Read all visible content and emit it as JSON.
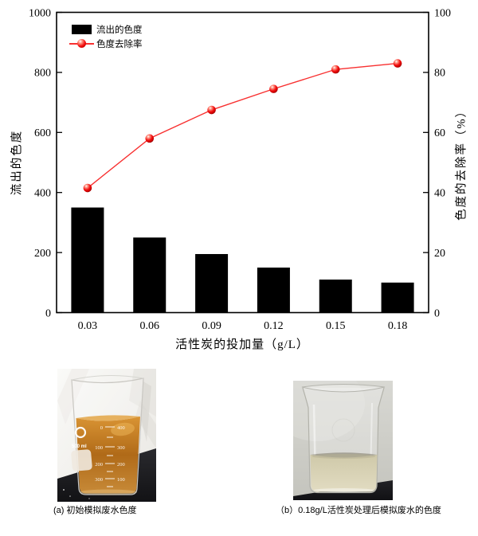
{
  "chart_data": {
    "type": "combo-bar-line",
    "categories": [
      "0.03",
      "0.06",
      "0.09",
      "0.12",
      "0.15",
      "0.18"
    ],
    "series": [
      {
        "name": "流出的色度",
        "type": "bar",
        "axis": "left",
        "color": "#000000",
        "values": [
          350,
          250,
          195,
          150,
          110,
          100
        ]
      },
      {
        "name": "色度去除率",
        "type": "line",
        "axis": "right",
        "color": "#f83030",
        "marker": "red-3d-ball",
        "values": [
          41.5,
          58,
          67.5,
          74.5,
          81,
          83
        ]
      }
    ],
    "title": "",
    "xlabel": "活性炭的投加量（g/L）",
    "ylabel_left": "流出的色度",
    "ylabel_right": "色度的去除率（%）",
    "ylim_left": [
      0,
      1000
    ],
    "ylim_right": [
      0,
      100
    ],
    "yticks_left": [
      "0",
      "200",
      "400",
      "600",
      "800",
      "1000"
    ],
    "yticks_right": [
      "0",
      "20",
      "40",
      "60",
      "80",
      "100"
    ],
    "grid": false,
    "legend_position": "top-left-inside"
  },
  "photos": {
    "a": {
      "caption": "(a) 初始模拟废水色度",
      "beaker_volume_label": "500 ml",
      "scale_left": [
        "0",
        "100",
        "200",
        "300"
      ],
      "scale_right": [
        "400",
        "300",
        "200",
        "100"
      ],
      "liquid_color": "#b4701f"
    },
    "b": {
      "caption": "（b）0.18g/L活性炭处理后模拟废水的色度",
      "liquid_color": "#dcd6b6"
    }
  }
}
